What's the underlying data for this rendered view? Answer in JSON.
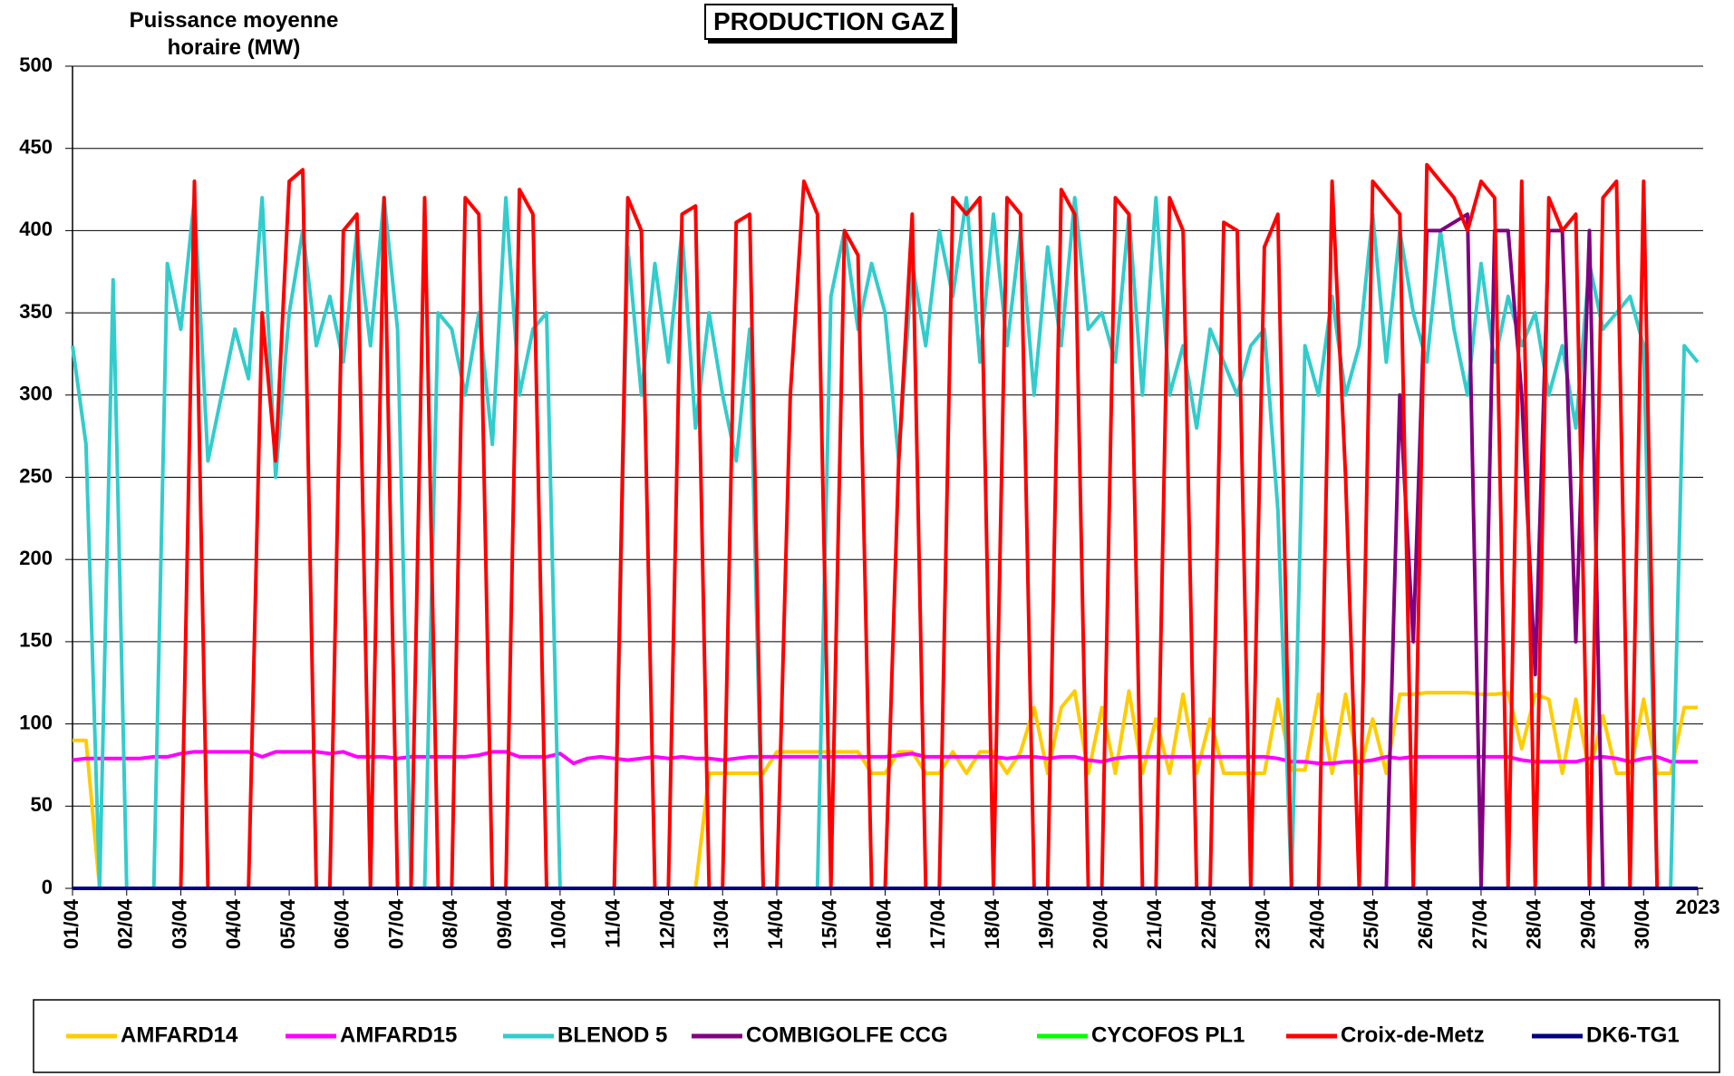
{
  "chart_data": {
    "type": "line",
    "title": "PRODUCTION GAZ",
    "y_label": "Puissance moyenne horaire (MW)",
    "x": [
      0,
      0.25,
      0.5,
      0.75,
      1,
      1.25,
      1.5,
      1.75,
      2,
      2.25,
      2.5,
      2.75,
      3,
      3.25,
      3.5,
      3.75,
      4,
      4.25,
      4.5,
      4.75,
      5,
      5.25,
      5.5,
      5.75,
      6,
      6.25,
      6.5,
      6.75,
      7,
      7.25,
      7.5,
      7.75,
      8,
      8.25,
      8.5,
      8.75,
      9,
      9.25,
      9.5,
      9.75,
      10,
      10.25,
      10.5,
      10.75,
      11,
      11.25,
      11.5,
      11.75,
      12,
      12.25,
      12.5,
      12.75,
      13,
      13.25,
      13.5,
      13.75,
      14,
      14.25,
      14.5,
      14.75,
      15,
      15.25,
      15.5,
      15.75,
      16,
      16.25,
      16.5,
      16.75,
      17,
      17.25,
      17.5,
      17.75,
      18,
      18.25,
      18.5,
      18.75,
      19,
      19.25,
      19.5,
      19.75,
      20,
      20.25,
      20.5,
      20.75,
      21,
      21.25,
      21.5,
      21.75,
      22,
      22.25,
      22.5,
      22.75,
      23,
      23.25,
      23.5,
      23.75,
      24,
      24.25,
      24.5,
      24.75,
      25,
      25.25,
      25.5,
      25.75,
      26,
      26.25,
      26.5,
      26.75,
      27,
      27.25,
      27.5,
      27.75,
      28,
      28.25,
      28.5,
      28.75,
      29,
      29.25,
      29.5,
      29.75,
      30
    ],
    "xlim": [
      0,
      30.1
    ],
    "xticks": [
      {
        "value": 0,
        "label": "01/04"
      },
      {
        "value": 1,
        "label": "02/04"
      },
      {
        "value": 2,
        "label": "03/04"
      },
      {
        "value": 3,
        "label": "04/04"
      },
      {
        "value": 4,
        "label": "05/04"
      },
      {
        "value": 5,
        "label": "06/04"
      },
      {
        "value": 6,
        "label": "07/04"
      },
      {
        "value": 7,
        "label": "08/04"
      },
      {
        "value": 8,
        "label": "09/04"
      },
      {
        "value": 9,
        "label": "10/04"
      },
      {
        "value": 10,
        "label": "11/04"
      },
      {
        "value": 11,
        "label": "12/04"
      },
      {
        "value": 12,
        "label": "13/04"
      },
      {
        "value": 13,
        "label": "14/04"
      },
      {
        "value": 14,
        "label": "15/04"
      },
      {
        "value": 15,
        "label": "16/04"
      },
      {
        "value": 16,
        "label": "17/04"
      },
      {
        "value": 17,
        "label": "18/04"
      },
      {
        "value": 18,
        "label": "19/04"
      },
      {
        "value": 19,
        "label": "20/04"
      },
      {
        "value": 20,
        "label": "21/04"
      },
      {
        "value": 21,
        "label": "22/04"
      },
      {
        "value": 22,
        "label": "23/04"
      },
      {
        "value": 23,
        "label": "24/04"
      },
      {
        "value": 24,
        "label": "25/04"
      },
      {
        "value": 25,
        "label": "26/04"
      },
      {
        "value": 26,
        "label": "27/04"
      },
      {
        "value": 27,
        "label": "28/04"
      },
      {
        "value": 28,
        "label": "29/04"
      },
      {
        "value": 29,
        "label": "30/04"
      },
      {
        "value": 30,
        "label": "2023"
      }
    ],
    "ylim": [
      0,
      500
    ],
    "yticks": [
      0,
      50,
      100,
      150,
      200,
      250,
      300,
      350,
      400,
      450,
      500
    ],
    "grid": true,
    "legend": "bottom",
    "series": [
      {
        "name": "AMFARD14",
        "color": "#ffcc00",
        "values": [
          90,
          90,
          0,
          0,
          0,
          0,
          0,
          0,
          0,
          0,
          0,
          0,
          0,
          0,
          0,
          0,
          0,
          0,
          0,
          0,
          0,
          0,
          0,
          0,
          0,
          0,
          0,
          0,
          0,
          0,
          0,
          0,
          0,
          0,
          0,
          0,
          0,
          0,
          0,
          0,
          0,
          0,
          0,
          0,
          0,
          0,
          0,
          70,
          70,
          70,
          70,
          70,
          83,
          83,
          83,
          83,
          83,
          83,
          83,
          70,
          70,
          83,
          83,
          70,
          70,
          83,
          70,
          83,
          83,
          70,
          83,
          110,
          70,
          110,
          120,
          70,
          110,
          70,
          120,
          70,
          103,
          70,
          118,
          70,
          103,
          70,
          70,
          70,
          70,
          115,
          72,
          72,
          118,
          70,
          118,
          70,
          103,
          70,
          118,
          118,
          119,
          119,
          119,
          119,
          118,
          118,
          119,
          85,
          118,
          115,
          70,
          115,
          70,
          105,
          70,
          70,
          115,
          70,
          70,
          110,
          110
        ]
      },
      {
        "name": "AMFARD15",
        "color": "#ff00ff",
        "values": [
          78,
          79,
          79,
          79,
          79,
          79,
          80,
          80,
          82,
          83,
          83,
          83,
          83,
          83,
          80,
          83,
          83,
          83,
          83,
          82,
          83,
          80,
          80,
          80,
          79,
          80,
          80,
          80,
          80,
          80,
          81,
          83,
          83,
          80,
          80,
          80,
          82,
          76,
          79,
          80,
          79,
          78,
          79,
          80,
          79,
          80,
          79,
          79,
          78,
          79,
          80,
          80,
          80,
          80,
          80,
          80,
          80,
          80,
          80,
          80,
          80,
          81,
          82,
          80,
          80,
          80,
          80,
          80,
          80,
          79,
          80,
          80,
          79,
          80,
          80,
          78,
          77,
          79,
          80,
          80,
          80,
          80,
          80,
          80,
          80,
          80,
          80,
          80,
          80,
          79,
          77,
          77,
          76,
          76,
          77,
          77,
          78,
          80,
          79,
          80,
          80,
          80,
          80,
          80,
          80,
          80,
          80,
          78,
          77,
          77,
          77,
          77,
          79,
          80,
          79,
          77,
          79,
          80,
          77,
          77,
          77
        ]
      },
      {
        "name": "BLENOD 5",
        "color": "#33cccc",
        "values": [
          330,
          270,
          0,
          370,
          0,
          0,
          0,
          380,
          340,
          420,
          260,
          300,
          340,
          310,
          420,
          250,
          350,
          400,
          330,
          360,
          320,
          400,
          330,
          420,
          340,
          0,
          0,
          350,
          340,
          300,
          350,
          270,
          420,
          300,
          340,
          350,
          0,
          0,
          0,
          0,
          0,
          390,
          300,
          380,
          320,
          400,
          280,
          350,
          300,
          260,
          340,
          0,
          0,
          0,
          0,
          0,
          360,
          400,
          340,
          380,
          350,
          260,
          380,
          330,
          400,
          360,
          420,
          320,
          410,
          330,
          400,
          300,
          390,
          330,
          420,
          340,
          350,
          320,
          410,
          300,
          420,
          300,
          330,
          280,
          340,
          320,
          300,
          330,
          340,
          230,
          0,
          330,
          300,
          360,
          300,
          330,
          410,
          320,
          400,
          350,
          320,
          400,
          340,
          300,
          380,
          320,
          360,
          330,
          350,
          300,
          330,
          280,
          380,
          340,
          350,
          360,
          330,
          0,
          0,
          330,
          320
        ]
      },
      {
        "name": "COMBIGOLFE CCG",
        "color": "#800080",
        "values": [
          0,
          0,
          0,
          0,
          0,
          0,
          0,
          0,
          0,
          0,
          0,
          0,
          0,
          0,
          0,
          0,
          0,
          0,
          0,
          0,
          0,
          0,
          0,
          0,
          0,
          0,
          0,
          0,
          0,
          0,
          0,
          0,
          0,
          0,
          0,
          0,
          0,
          0,
          0,
          0,
          0,
          0,
          0,
          0,
          0,
          0,
          0,
          0,
          0,
          0,
          0,
          0,
          0,
          0,
          0,
          0,
          0,
          0,
          0,
          0,
          0,
          0,
          0,
          0,
          0,
          0,
          0,
          0,
          0,
          0,
          0,
          0,
          0,
          0,
          0,
          0,
          0,
          0,
          0,
          0,
          0,
          0,
          0,
          0,
          0,
          0,
          0,
          0,
          0,
          0,
          0,
          0,
          0,
          0,
          0,
          0,
          0,
          0,
          300,
          150,
          400,
          400,
          405,
          410,
          0,
          400,
          400,
          300,
          130,
          400,
          400,
          150,
          400,
          0,
          0,
          0,
          0,
          0,
          0,
          0,
          0
        ]
      },
      {
        "name": "CYCOFOS PL1",
        "color": "#00ff00",
        "values": [
          0,
          0,
          0,
          0,
          0,
          0,
          0,
          0,
          0,
          0,
          0,
          0,
          0,
          0,
          0,
          0,
          0,
          0,
          0,
          0,
          0,
          0,
          0,
          0,
          0,
          0,
          0,
          0,
          0,
          0,
          0,
          0,
          0,
          0,
          0,
          0,
          0,
          0,
          0,
          0,
          0,
          0,
          0,
          0,
          0,
          0,
          0,
          0,
          0,
          0,
          0,
          0,
          0,
          0,
          0,
          0,
          0,
          0,
          0,
          0,
          0,
          0,
          0,
          0,
          0,
          0,
          0,
          0,
          0,
          0,
          0,
          0,
          0,
          0,
          0,
          0,
          0,
          0,
          0,
          0,
          0,
          0,
          0,
          0,
          0,
          0,
          0,
          0,
          0,
          0,
          0,
          0,
          0,
          0,
          0,
          0,
          0,
          0,
          0,
          0,
          0,
          0,
          0,
          0,
          0,
          0,
          0,
          0,
          0,
          0,
          0,
          0,
          0,
          0,
          0,
          0,
          0,
          0,
          0,
          0,
          0
        ]
      },
      {
        "name": "Croix-de-Metz",
        "color": "#ff0000",
        "values": [
          0,
          0,
          0,
          0,
          0,
          0,
          0,
          0,
          0,
          430,
          0,
          0,
          0,
          0,
          350,
          260,
          430,
          437,
          0,
          0,
          400,
          410,
          0,
          420,
          0,
          0,
          420,
          0,
          0,
          420,
          410,
          0,
          0,
          425,
          410,
          0,
          0,
          0,
          0,
          0,
          0,
          420,
          400,
          0,
          0,
          410,
          415,
          0,
          0,
          405,
          410,
          0,
          0,
          300,
          430,
          410,
          0,
          400,
          385,
          0,
          0,
          260,
          410,
          0,
          0,
          420,
          410,
          420,
          0,
          420,
          410,
          0,
          0,
          425,
          410,
          0,
          0,
          420,
          410,
          0,
          0,
          420,
          400,
          0,
          0,
          405,
          400,
          0,
          390,
          410,
          0,
          0,
          0,
          430,
          250,
          0,
          430,
          420,
          410,
          0,
          440,
          430,
          420,
          400,
          430,
          420,
          0,
          430,
          0,
          420,
          400,
          410,
          0,
          420,
          430,
          0,
          430,
          0,
          0,
          0,
          0
        ]
      },
      {
        "name": "DK6-TG1",
        "color": "#000080",
        "values": [
          0,
          0,
          0,
          0,
          0,
          0,
          0,
          0,
          0,
          0,
          0,
          0,
          0,
          0,
          0,
          0,
          0,
          0,
          0,
          0,
          0,
          0,
          0,
          0,
          0,
          0,
          0,
          0,
          0,
          0,
          0,
          0,
          0,
          0,
          0,
          0,
          0,
          0,
          0,
          0,
          0,
          0,
          0,
          0,
          0,
          0,
          0,
          0,
          0,
          0,
          0,
          0,
          0,
          0,
          0,
          0,
          0,
          0,
          0,
          0,
          0,
          0,
          0,
          0,
          0,
          0,
          0,
          0,
          0,
          0,
          0,
          0,
          0,
          0,
          0,
          0,
          0,
          0,
          0,
          0,
          0,
          0,
          0,
          0,
          0,
          0,
          0,
          0,
          0,
          0,
          0,
          0,
          0,
          0,
          0,
          0,
          0,
          0,
          0,
          0,
          0,
          0,
          0,
          0,
          0,
          0,
          0,
          0,
          0,
          0,
          0,
          0,
          0,
          0,
          0,
          0,
          0,
          0,
          0,
          0,
          0
        ]
      }
    ]
  }
}
